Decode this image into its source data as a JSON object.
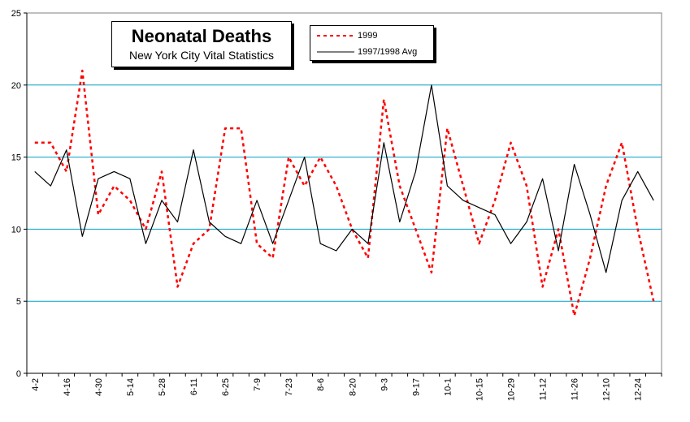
{
  "chart_data": {
    "type": "line",
    "title": "Neonatal Deaths",
    "subtitle": "New York City Vital Statistics",
    "xlabel": "",
    "ylabel": "",
    "ylim": [
      0,
      25
    ],
    "yticks": [
      0,
      5,
      10,
      15,
      20,
      25
    ],
    "grid": "horizontal",
    "legend_placement": "top-center",
    "x_tick_labels": [
      "4-2",
      "4-16",
      "4-30",
      "5-14",
      "5-28",
      "6-11",
      "6-25",
      "7-9",
      "7-23",
      "8-6",
      "8-20",
      "9-3",
      "9-17",
      "10-1",
      "10-15",
      "10-29",
      "11-12",
      "11-26",
      "12-10",
      "12-24"
    ],
    "series": [
      {
        "name": "1999",
        "color": "#ff0000",
        "style": "dashed",
        "values": [
          16,
          16,
          14,
          21,
          11,
          13,
          12,
          10,
          14,
          6,
          9,
          10,
          17,
          17,
          9,
          8,
          15,
          13,
          15,
          13,
          10,
          8,
          19,
          13,
          10,
          7,
          17,
          13,
          9,
          12,
          16,
          13,
          6,
          10,
          4,
          8,
          13,
          16,
          10,
          5
        ]
      },
      {
        "name": "1997/1998 Avg",
        "color": "#000000",
        "style": "solid",
        "values": [
          14,
          13,
          15.5,
          9.5,
          13.5,
          14,
          13.5,
          9,
          12,
          10.5,
          15.5,
          10.5,
          9.5,
          9,
          12,
          9,
          12,
          15,
          9,
          8.5,
          10,
          9,
          16,
          10.5,
          14,
          20,
          13,
          12,
          11.5,
          11,
          9,
          10.5,
          13.5,
          8.5,
          14.5,
          11,
          7,
          12,
          14,
          12
        ]
      }
    ]
  }
}
